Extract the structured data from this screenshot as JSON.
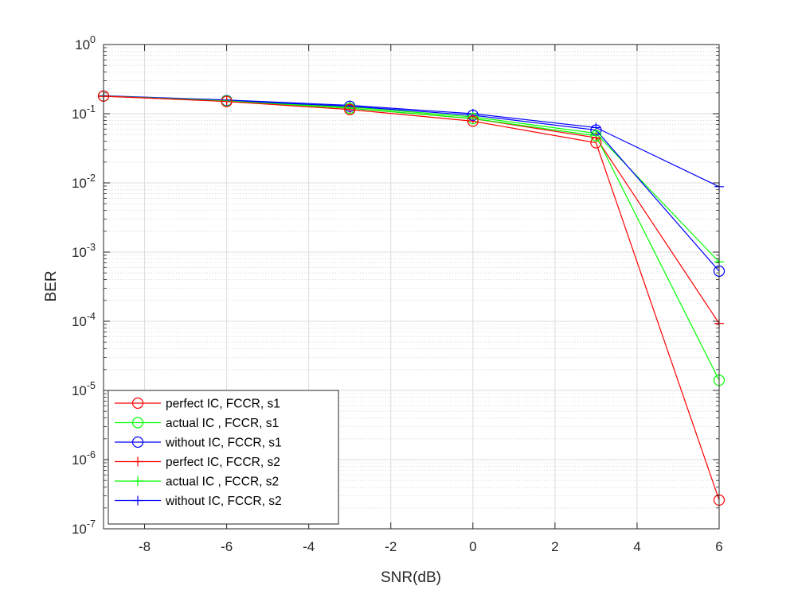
{
  "chart_data": {
    "type": "line",
    "y_scale": "log",
    "xlabel": "SNR(dB)",
    "ylabel": "BER",
    "xlim": [
      -9,
      6
    ],
    "ylim": [
      1e-07,
      1
    ],
    "xticks": [
      -8,
      -6,
      -4,
      -2,
      0,
      2,
      4,
      6
    ],
    "xtick_labels": [
      "-8",
      "-6",
      "-4",
      "-2",
      "0",
      "2",
      "4",
      "6"
    ],
    "ytick_exponents": [
      0,
      -1,
      -2,
      -3,
      -4,
      -5,
      -6,
      -7
    ],
    "ytick_base": "10",
    "grid": true,
    "legend_location": "bottom-left",
    "x": [
      -9,
      -6,
      -3,
      0,
      3,
      6
    ],
    "series": [
      {
        "name": "perfect IC, FCCR, s1",
        "color": "#ff0000",
        "marker": "circle",
        "values": [
          0.18,
          0.15,
          0.115,
          0.078,
          0.038,
          2.6e-07
        ]
      },
      {
        "name": "actual IC ,  FCCR, s1",
        "color": "#00ff00",
        "marker": "circle",
        "values": [
          0.18,
          0.153,
          0.12,
          0.085,
          0.048,
          1.4e-05
        ]
      },
      {
        "name": "without IC, FCCR, s1",
        "color": "#0000ff",
        "marker": "circle",
        "values": [
          0.18,
          0.155,
          0.128,
          0.095,
          0.058,
          0.00053
        ]
      },
      {
        "name": "perfect IC, FCCR, s2",
        "color": "#ff0000",
        "marker": "plus",
        "values": [
          0.178,
          0.152,
          0.12,
          0.085,
          0.045,
          9.3e-05
        ]
      },
      {
        "name": "actual IC ,  FCCR, s2",
        "color": "#00ff00",
        "marker": "plus",
        "values": [
          0.18,
          0.155,
          0.125,
          0.09,
          0.052,
          0.00072
        ]
      },
      {
        "name": "without IC, FCCR, s2",
        "color": "#0000ff",
        "marker": "plus",
        "values": [
          0.182,
          0.158,
          0.132,
          0.1,
          0.063,
          0.0088
        ]
      }
    ]
  }
}
